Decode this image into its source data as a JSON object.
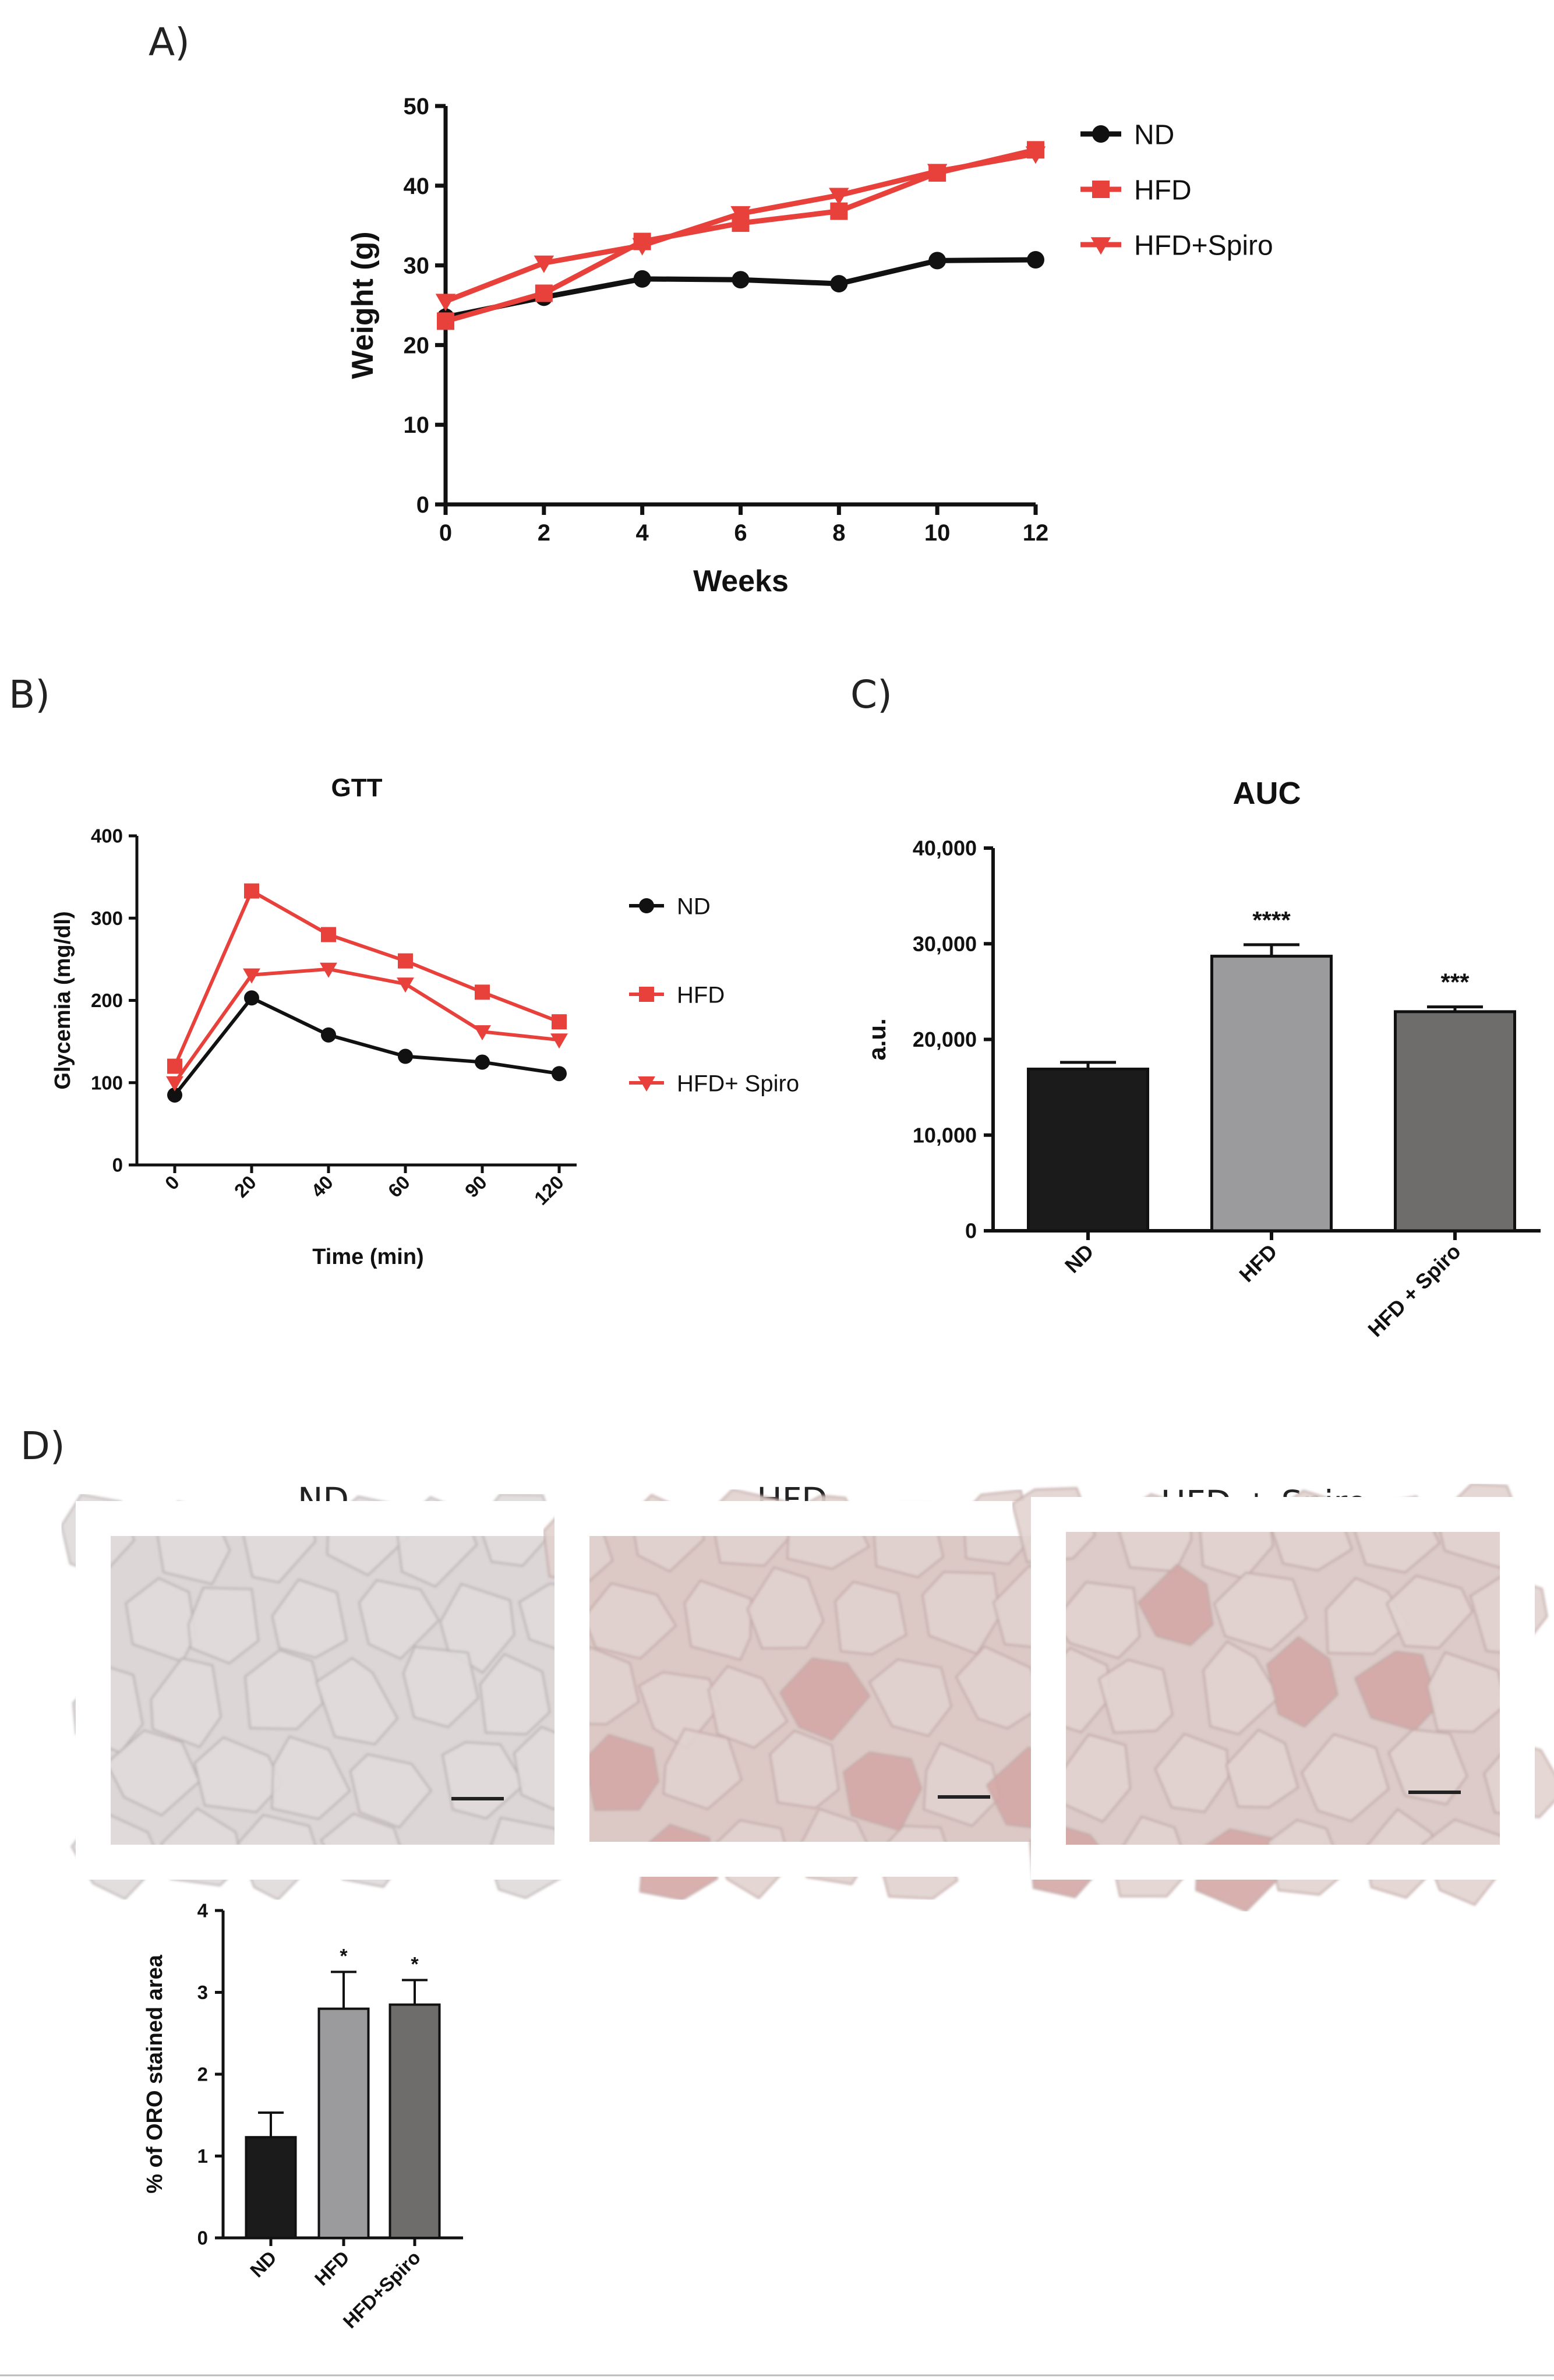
{
  "panels": {
    "a": "A)",
    "b": "B)",
    "c": "C)",
    "d": "D)"
  },
  "images": {
    "titles": [
      "ND",
      "HFD",
      "HFD + Spiro"
    ]
  },
  "colors": {
    "black_series": "#111111",
    "red_series": "#e8413b",
    "bar_nd": "#1b1b1b",
    "bar_hfd": "#9b9b9d",
    "bar_spiro": "#6f6d6b",
    "tissue_nd": "#dcd6d6",
    "tissue_hfd": "#dcc9c6",
    "tissue_spiro": "#dccbc8"
  },
  "chart_data": [
    {
      "id": "A",
      "type": "line",
      "title": "",
      "xlabel": "Weeks",
      "ylabel": "Weight (g)",
      "xlim": [
        0,
        12
      ],
      "ylim": [
        0,
        50
      ],
      "x_ticks": [
        "0",
        "2",
        "4",
        "6",
        "8",
        "10",
        "12"
      ],
      "y_ticks": [
        "0",
        "10",
        "20",
        "30",
        "40",
        "50"
      ],
      "x": [
        0,
        2,
        4,
        6,
        8,
        10,
        12
      ],
      "legend_position": "right",
      "series": [
        {
          "name": "ND",
          "marker": "circle",
          "values": [
            23.5,
            26,
            28.3,
            28.2,
            27.7,
            30.6,
            30.7
          ]
        },
        {
          "name": "HFD",
          "marker": "square",
          "values": [
            23,
            26.5,
            33,
            35.3,
            36.8,
            41.6,
            44.5
          ]
        },
        {
          "name": "HFD+Spiro",
          "marker": "triangle-down",
          "values": [
            25.5,
            30.3,
            32.5,
            36.5,
            38.8,
            41.8,
            44
          ]
        }
      ]
    },
    {
      "id": "B",
      "type": "line",
      "title": "GTT",
      "xlabel": "Time (min)",
      "ylabel": "Glycemia (mg/dl)",
      "ylim": [
        0,
        400
      ],
      "categories": [
        "0",
        "20",
        "40",
        "60",
        "90",
        "120"
      ],
      "y_ticks": [
        "0",
        "100",
        "200",
        "300",
        "400"
      ],
      "legend_position": "right",
      "series": [
        {
          "name": "ND",
          "marker": "circle",
          "values": [
            85,
            203,
            158,
            132,
            125,
            111
          ]
        },
        {
          "name": "HFD",
          "marker": "square",
          "values": [
            120,
            333,
            280,
            248,
            210,
            174
          ]
        },
        {
          "name": "HFD+ Spiro",
          "marker": "triangle-down",
          "values": [
            100,
            231,
            238,
            220,
            162,
            152
          ]
        }
      ]
    },
    {
      "id": "C",
      "type": "bar",
      "title": "AUC",
      "xlabel": "",
      "ylabel": "a.u.",
      "ylim": [
        0,
        40000
      ],
      "y_ticks": [
        "0",
        "10,000",
        "20,000",
        "30,000",
        "40,000"
      ],
      "categories": [
        "ND",
        "HFD",
        "HFD + Spiro"
      ],
      "values": [
        16900,
        28700,
        22900
      ],
      "errors": [
        700,
        1200,
        500
      ],
      "annotations": [
        "",
        "****",
        "***"
      ]
    },
    {
      "id": "D",
      "type": "bar",
      "title": "",
      "xlabel": "",
      "ylabel": "% of ORO stained area",
      "ylim": [
        0,
        4
      ],
      "y_ticks": [
        "0",
        "1",
        "2",
        "3",
        "4"
      ],
      "categories": [
        "ND",
        "HFD",
        "HFD+Spiro"
      ],
      "values": [
        1.23,
        2.8,
        2.85
      ],
      "errors": [
        0.3,
        0.45,
        0.3
      ],
      "annotations": [
        "",
        "*",
        "*"
      ]
    }
  ]
}
